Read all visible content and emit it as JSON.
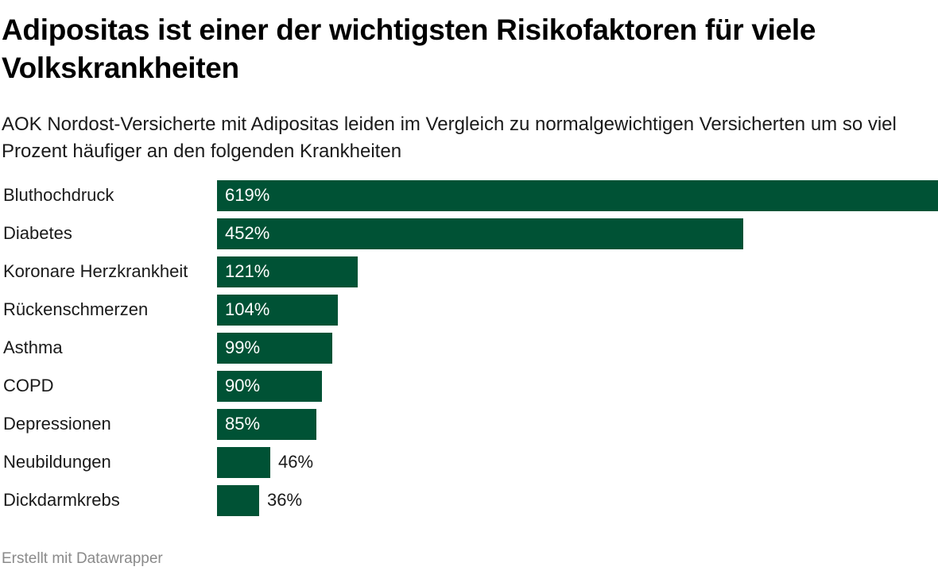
{
  "title": "Adipositas ist einer der wichtigsten Risikofaktoren für viele Volkskrankheiten",
  "subtitle": "AOK Nordost-Versicherte mit Adipositas leiden im Vergleich zu normalgewichtigen Versicherten um so viel Prozent häufiger an den folgenden Krankheiten",
  "footer": "Erstellt mit Datawrapper",
  "colors": {
    "bar": "#005235",
    "label_inside": "#ffffff",
    "label_outside": "#1a1a1a"
  },
  "chart_data": {
    "type": "bar",
    "orientation": "horizontal",
    "categories": [
      "Bluthochdruck",
      "Diabetes",
      "Koronare Herzkrankheit",
      "Rückenschmerzen",
      "Asthma",
      "COPD",
      "Depressionen",
      "Neubildungen",
      "Dickdarmkrebs"
    ],
    "values": [
      619,
      452,
      121,
      104,
      99,
      90,
      85,
      46,
      36
    ],
    "value_labels": [
      "619%",
      "452%",
      "121%",
      "104%",
      "99%",
      "90%",
      "85%",
      "46%",
      "36%"
    ],
    "xlim": [
      0,
      619
    ],
    "grid": false,
    "legend": "none"
  }
}
